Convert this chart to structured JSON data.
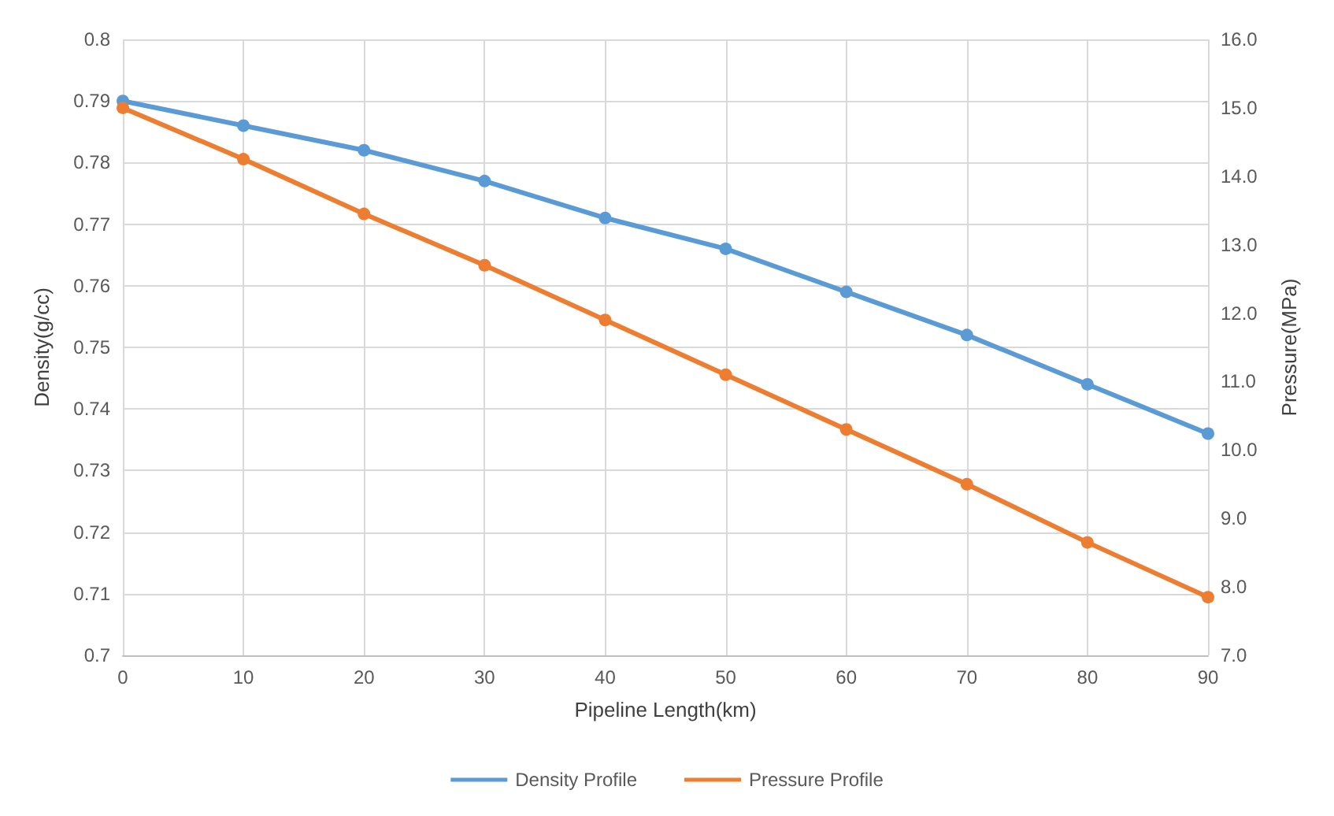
{
  "chart_data": {
    "type": "line",
    "xlabel": "Pipeline Length(km)",
    "ylabel": "Density(g/cc)",
    "y2label": "Pressure(MPa)",
    "x": [
      0,
      10,
      20,
      30,
      40,
      50,
      60,
      70,
      80,
      90
    ],
    "series": [
      {
        "name": "Density Profile",
        "color": "#5b9bd5",
        "values": [
          0.79,
          0.786,
          0.782,
          0.777,
          0.771,
          0.766,
          0.759,
          0.752,
          0.744,
          0.736
        ]
      },
      {
        "name": "Pressure Profile",
        "color": "#ed7d31",
        "axis": "y2",
        "values": [
          15.0,
          14.25,
          13.45,
          12.7,
          11.9,
          11.1,
          10.3,
          9.5,
          8.65,
          7.85
        ]
      }
    ],
    "xlim": [
      0,
      90
    ],
    "xticks": [
      0,
      10,
      20,
      30,
      40,
      50,
      60,
      70,
      80,
      90
    ],
    "ylim": [
      0.7,
      0.8
    ],
    "yticks": [
      0.7,
      0.71,
      0.72,
      0.73,
      0.74,
      0.75,
      0.76,
      0.77,
      0.78,
      0.79,
      0.8
    ],
    "y2lim": [
      7,
      16
    ],
    "y2ticks": [
      {
        "value": 7,
        "label": "7.0"
      },
      {
        "value": 8,
        "label": "8.0"
      },
      {
        "value": 9,
        "label": "9.0"
      },
      {
        "value": 10,
        "label": "10.0"
      },
      {
        "value": 11,
        "label": "11.0"
      },
      {
        "value": 12,
        "label": "12.0"
      },
      {
        "value": 13,
        "label": "13.0"
      },
      {
        "value": 14,
        "label": "14.0"
      },
      {
        "value": 15,
        "label": "15.0"
      },
      {
        "value": 16,
        "label": "16.0"
      }
    ],
    "grid": true,
    "legend": "bottom",
    "marker": "circle",
    "line_style": "solid"
  }
}
